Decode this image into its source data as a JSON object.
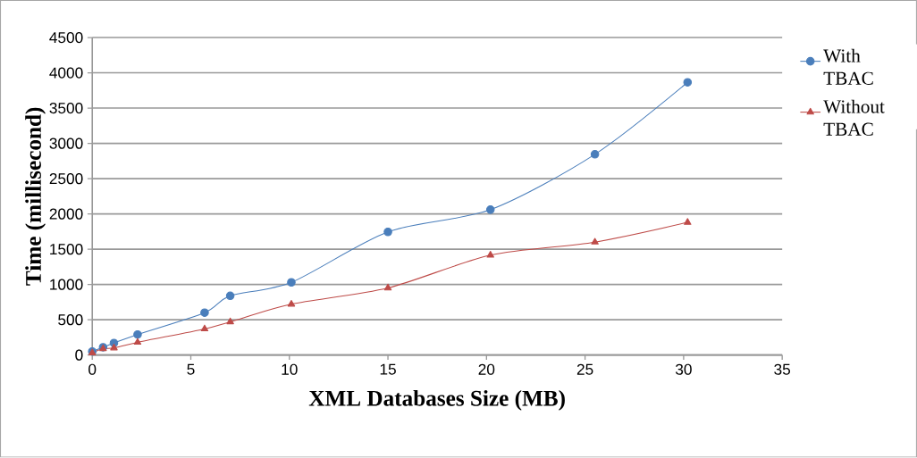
{
  "chart_data": {
    "type": "line",
    "xlabel": "XML Databases Size (MB)",
    "ylabel": "Time (millisecond)",
    "xlim": [
      0,
      35
    ],
    "xticks": [
      0,
      5,
      10,
      15,
      20,
      25,
      30,
      35
    ],
    "ylim": [
      0,
      4500
    ],
    "yticks": [
      0,
      500,
      1000,
      1500,
      2000,
      2500,
      3000,
      3500,
      4000,
      4500
    ],
    "grid": "y",
    "legend": "right",
    "line_style": "solid",
    "series": [
      {
        "name": "With TBAC",
        "color": "#4a7ebb",
        "marker": "circle",
        "x": [
          0,
          0.55,
          1.1,
          2.3,
          5.7,
          7.0,
          10.1,
          15.0,
          20.2,
          25.5,
          30.2
        ],
        "values": [
          50,
          110,
          170,
          290,
          600,
          840,
          1030,
          1745,
          2060,
          2845,
          3865
        ]
      },
      {
        "name": "Without TBAC",
        "color": "#be4b48",
        "marker": "triangle",
        "x": [
          0,
          0.55,
          1.1,
          2.3,
          5.7,
          7.0,
          10.1,
          15.0,
          20.2,
          25.5,
          30.2
        ],
        "values": [
          30,
          90,
          100,
          180,
          370,
          470,
          720,
          950,
          1415,
          1600,
          1880
        ]
      }
    ]
  }
}
